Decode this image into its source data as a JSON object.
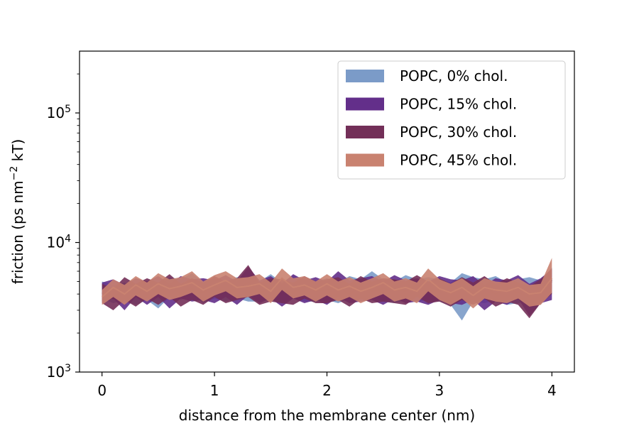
{
  "chart_data": {
    "type": "area",
    "xlabel": "distance from the membrane center (nm)",
    "ylabel": "friction (ps nm",
    "ylabel_sup": "−2",
    "ylabel_end": " kT)",
    "xlim": [
      -0.2,
      4.2
    ],
    "ylim": [
      1000,
      300000
    ],
    "yscale": "log",
    "xticks": [
      0,
      1,
      2,
      3,
      4
    ],
    "xtick_labels": [
      "0",
      "1",
      "2",
      "3",
      "4"
    ],
    "yticks": [
      1000,
      10000,
      100000
    ],
    "ytick_labels": [
      {
        "base": "10",
        "exp": "3"
      },
      {
        "base": "10",
        "exp": "4"
      },
      {
        "base": "10",
        "exp": "5"
      }
    ],
    "legend": {
      "loc": "upper right"
    },
    "x": [
      0,
      0.1,
      0.2,
      0.3,
      0.4,
      0.5,
      0.6,
      0.7,
      0.8,
      0.9,
      1.0,
      1.1,
      1.2,
      1.3,
      1.4,
      1.5,
      1.6,
      1.7,
      1.8,
      1.9,
      2.0,
      2.1,
      2.2,
      2.3,
      2.4,
      2.5,
      2.6,
      2.7,
      2.8,
      2.9,
      3.0,
      3.1,
      3.2,
      3.3,
      3.4,
      3.5,
      3.6,
      3.7,
      3.8,
      3.9,
      4.0
    ],
    "series": [
      {
        "name": "POPC, 0% chol.",
        "color": "#7b9bc8",
        "mean": [
          4300,
          4000,
          4200,
          3900,
          4300,
          3800,
          4500,
          4300,
          4600,
          4100,
          4400,
          4200,
          4500,
          4300,
          4200,
          4600,
          4100,
          4500,
          4300,
          4200,
          4400,
          4100,
          4500,
          4300,
          4700,
          4300,
          4200,
          4500,
          4300,
          4400,
          4300,
          4100,
          3900,
          4400,
          4300,
          4500,
          4100,
          4300,
          4400,
          4200,
          5200
        ],
        "lower": [
          3700,
          3400,
          3600,
          3300,
          3600,
          3100,
          3800,
          3600,
          3900,
          3400,
          3700,
          3500,
          3700,
          3500,
          3500,
          3800,
          3400,
          3700,
          3500,
          3500,
          3600,
          3400,
          3700,
          3500,
          3900,
          3500,
          3400,
          3600,
          3500,
          3600,
          3500,
          3300,
          2500,
          3500,
          3400,
          3600,
          3300,
          3400,
          3500,
          3300,
          4400
        ],
        "upper": [
          5000,
          4700,
          4900,
          4600,
          5000,
          4500,
          5400,
          5200,
          5800,
          4900,
          5300,
          5000,
          5400,
          5200,
          5000,
          5700,
          4900,
          5600,
          5200,
          5000,
          5300,
          4900,
          5500,
          5200,
          6000,
          5200,
          5000,
          5600,
          5200,
          5400,
          5200,
          4900,
          5800,
          5400,
          5200,
          5500,
          4900,
          5200,
          5400,
          5100,
          6400
        ]
      },
      {
        "name": "POPC, 15% chol.",
        "color": "#632f8a",
        "mean": [
          4200,
          4400,
          3900,
          4500,
          4100,
          4600,
          3900,
          4500,
          4300,
          4400,
          4200,
          4600,
          4100,
          4800,
          4200,
          4500,
          4000,
          4600,
          4200,
          4500,
          4100,
          4700,
          4200,
          4400,
          4500,
          4100,
          4600,
          4200,
          4400,
          4100,
          4500,
          4300,
          4200,
          4500,
          3900,
          4400,
          4200,
          4600,
          3900,
          4400,
          5000
        ],
        "lower": [
          3500,
          3700,
          3000,
          3800,
          3300,
          3800,
          3100,
          3700,
          3500,
          3600,
          3400,
          3800,
          3300,
          3900,
          3400,
          3700,
          3200,
          3700,
          3400,
          3600,
          3300,
          3800,
          3400,
          3500,
          3600,
          3300,
          3700,
          3400,
          3500,
          3300,
          3600,
          3400,
          3300,
          3600,
          3000,
          3500,
          3300,
          3700,
          2700,
          3400,
          3600
        ],
        "upper": [
          4900,
          5200,
          4700,
          5300,
          5000,
          5500,
          4800,
          5500,
          5200,
          5300,
          5100,
          5600,
          5000,
          6500,
          5100,
          5500,
          4800,
          5700,
          5100,
          5400,
          5000,
          6000,
          5100,
          5300,
          5500,
          5000,
          5600,
          5100,
          5300,
          5000,
          5500,
          5200,
          5100,
          5500,
          4700,
          5300,
          5100,
          5600,
          4800,
          5300,
          6200
        ]
      },
      {
        "name": "POPC, 30% chol.",
        "color": "#732f58",
        "mean": [
          4100,
          3700,
          4400,
          4000,
          4500,
          4100,
          4700,
          4000,
          4400,
          4100,
          4600,
          4200,
          4400,
          4900,
          4100,
          4400,
          4300,
          4100,
          4600,
          4200,
          4300,
          4500,
          4000,
          4600,
          4200,
          4400,
          4300,
          4200,
          4700,
          4200,
          4400,
          4000,
          4500,
          4100,
          4600,
          4000,
          4400,
          4100,
          3800,
          4300,
          5100
        ],
        "lower": [
          3400,
          3000,
          3600,
          3200,
          3700,
          3300,
          3800,
          3200,
          3600,
          3300,
          3800,
          3400,
          3600,
          3800,
          3300,
          3500,
          3400,
          3300,
          3700,
          3400,
          3400,
          3600,
          3200,
          3700,
          3400,
          3500,
          3400,
          3300,
          3800,
          3400,
          3500,
          3200,
          3600,
          3300,
          3700,
          3200,
          3500,
          3300,
          2600,
          3400,
          4000
        ],
        "upper": [
          4800,
          4400,
          5400,
          4800,
          5300,
          4900,
          5700,
          4800,
          5300,
          4900,
          5500,
          5000,
          5300,
          6700,
          4900,
          5300,
          5200,
          4900,
          5500,
          5000,
          5200,
          5400,
          4800,
          5500,
          5000,
          5300,
          5200,
          5000,
          5600,
          5000,
          5300,
          4800,
          5400,
          4900,
          5500,
          4800,
          5300,
          4900,
          4600,
          5200,
          6300
        ]
      },
      {
        "name": "POPC, 45% chol.",
        "color": "#c98270",
        "mean": [
          3800,
          4500,
          4000,
          4700,
          4200,
          4800,
          4400,
          4600,
          4900,
          4300,
          4700,
          5100,
          4500,
          4600,
          4800,
          4200,
          5300,
          4500,
          4700,
          4300,
          4800,
          4300,
          4600,
          4200,
          4500,
          4900,
          4300,
          4500,
          4200,
          5200,
          4400,
          4100,
          4500,
          3900,
          4500,
          4300,
          4200,
          4500,
          4000,
          4100,
          5300
        ],
        "lower": [
          3300,
          3800,
          3300,
          3900,
          3500,
          4000,
          3600,
          3800,
          4100,
          3500,
          3900,
          4200,
          3700,
          3800,
          4000,
          3400,
          4300,
          3700,
          3900,
          3500,
          3900,
          3500,
          3800,
          3400,
          3700,
          4000,
          3500,
          3700,
          3400,
          4200,
          3600,
          3300,
          3700,
          3100,
          3700,
          3500,
          3400,
          3700,
          3200,
          3300,
          4100
        ],
        "upper": [
          4300,
          5200,
          4700,
          5500,
          4900,
          5800,
          5200,
          5400,
          6000,
          5000,
          5600,
          6000,
          5300,
          5400,
          5700,
          4900,
          6300,
          5300,
          5500,
          5000,
          5700,
          5000,
          5400,
          4900,
          5300,
          5800,
          5000,
          5300,
          4900,
          6300,
          5200,
          4800,
          5300,
          4600,
          5300,
          5000,
          4900,
          5300,
          4700,
          4800,
          7600
        ]
      }
    ]
  }
}
